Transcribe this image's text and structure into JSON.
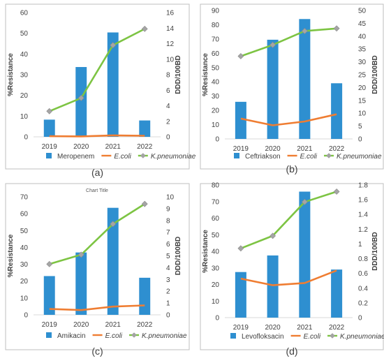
{
  "chart_data": [
    {
      "type": "bar",
      "panel_label": "(a)",
      "title": "",
      "categories": [
        "2019",
        "2020",
        "2021",
        "2022"
      ],
      "ylabel": "%Resistance",
      "ylabel2": "DDD/100BD",
      "ylim": [
        0,
        60
      ],
      "yticks": [
        0,
        10,
        20,
        30,
        40,
        50,
        60
      ],
      "ylim2": [
        0,
        16
      ],
      "yticks2": [
        0,
        2,
        4,
        6,
        8,
        10,
        12,
        14,
        16
      ],
      "series": [
        {
          "name": "Meropenem",
          "type": "bar",
          "axis": "left",
          "color": "#2e8fd0",
          "values": [
            8.3,
            33.7,
            50.4,
            7.9
          ]
        },
        {
          "name": "E.coli",
          "type": "line",
          "axis": "left",
          "color": "#ef7d32",
          "marker": "none",
          "values": [
            0.3,
            0.2,
            0.7,
            0.5
          ]
        },
        {
          "name": "K.pneumoniae",
          "type": "line",
          "axis": "right",
          "color": "#7dc443",
          "marker": "diamond",
          "values": [
            3.3,
            5.0,
            11.8,
            13.9
          ]
        }
      ]
    },
    {
      "type": "bar",
      "panel_label": "(b)",
      "title": "",
      "categories": [
        "2019",
        "2020",
        "2021",
        "2022"
      ],
      "ylabel": "%Resistance",
      "ylabel2": "DDD/100BD",
      "ylim": [
        0,
        90
      ],
      "yticks": [
        0,
        10,
        20,
        30,
        40,
        50,
        60,
        70,
        80,
        90
      ],
      "ylim2": [
        0,
        50
      ],
      "yticks2": [
        0,
        5,
        10,
        15,
        20,
        25,
        30,
        35,
        40,
        45,
        50
      ],
      "series": [
        {
          "name": "Ceftriakson",
          "type": "bar",
          "axis": "left",
          "color": "#2e8fd0",
          "values": [
            26,
            69.5,
            84,
            39
          ]
        },
        {
          "name": "E.coli",
          "type": "line",
          "axis": "right",
          "color": "#ef7d32",
          "marker": "none",
          "values": [
            7.9,
            5.3,
            6.8,
            9.6
          ]
        },
        {
          "name": "K.pneumoniae",
          "type": "line",
          "axis": "right",
          "color": "#7dc443",
          "marker": "diamond",
          "values": [
            32.2,
            36.6,
            42,
            43
          ]
        }
      ]
    },
    {
      "type": "bar",
      "panel_label": "(c)",
      "title": "Chart Title",
      "categories": [
        "2019",
        "2020",
        "2021",
        "2022"
      ],
      "ylabel": "%Resistance",
      "ylabel2": "DDD/100BD",
      "ylim": [
        0,
        70
      ],
      "yticks": [
        0,
        10,
        20,
        30,
        40,
        50,
        60,
        70
      ],
      "ylim2": [
        0,
        10
      ],
      "yticks2": [
        0,
        1,
        2,
        3,
        4,
        5,
        6,
        7,
        8,
        9,
        10
      ],
      "series": [
        {
          "name": "Amikacin",
          "type": "bar",
          "axis": "left",
          "color": "#2e8fd0",
          "values": [
            23,
            37,
            63.5,
            22
          ]
        },
        {
          "name": "E.coli",
          "type": "line",
          "axis": "right",
          "color": "#ef7d32",
          "marker": "none",
          "values": [
            0.5,
            0.4,
            0.7,
            0.8
          ]
        },
        {
          "name": "K.pneumoniae",
          "type": "line",
          "axis": "right",
          "color": "#7dc443",
          "marker": "diamond",
          "values": [
            4.3,
            5.1,
            7.7,
            9.4
          ]
        }
      ]
    },
    {
      "type": "bar",
      "panel_label": "(d)",
      "title": "",
      "categories": [
        "2019",
        "2020",
        "2021",
        "2022"
      ],
      "ylabel": "%Resistance",
      "ylabel2": "DDD/100BD",
      "ylim": [
        0,
        80
      ],
      "yticks": [
        0,
        10,
        20,
        30,
        40,
        50,
        60,
        70,
        80
      ],
      "ylim2": [
        0,
        1.8
      ],
      "yticks2": [
        "0",
        "0.2",
        "0.4",
        "0.6",
        "0.8",
        "1",
        "1.2",
        "1.4",
        "1.6",
        "1.8"
      ],
      "series": [
        {
          "name": "Levofloksacin",
          "type": "bar",
          "axis": "left",
          "color": "#2e8fd0",
          "values": [
            27.5,
            37.5,
            76,
            29
          ]
        },
        {
          "name": "E.coli",
          "type": "line",
          "axis": "right",
          "color": "#ef7d32",
          "marker": "none",
          "values": [
            0.53,
            0.44,
            0.47,
            0.64
          ]
        },
        {
          "name": "K.pneumoniae",
          "type": "line",
          "axis": "right",
          "color": "#7dc443",
          "marker": "diamond",
          "values": [
            0.94,
            1.11,
            1.57,
            1.71
          ]
        }
      ]
    }
  ]
}
